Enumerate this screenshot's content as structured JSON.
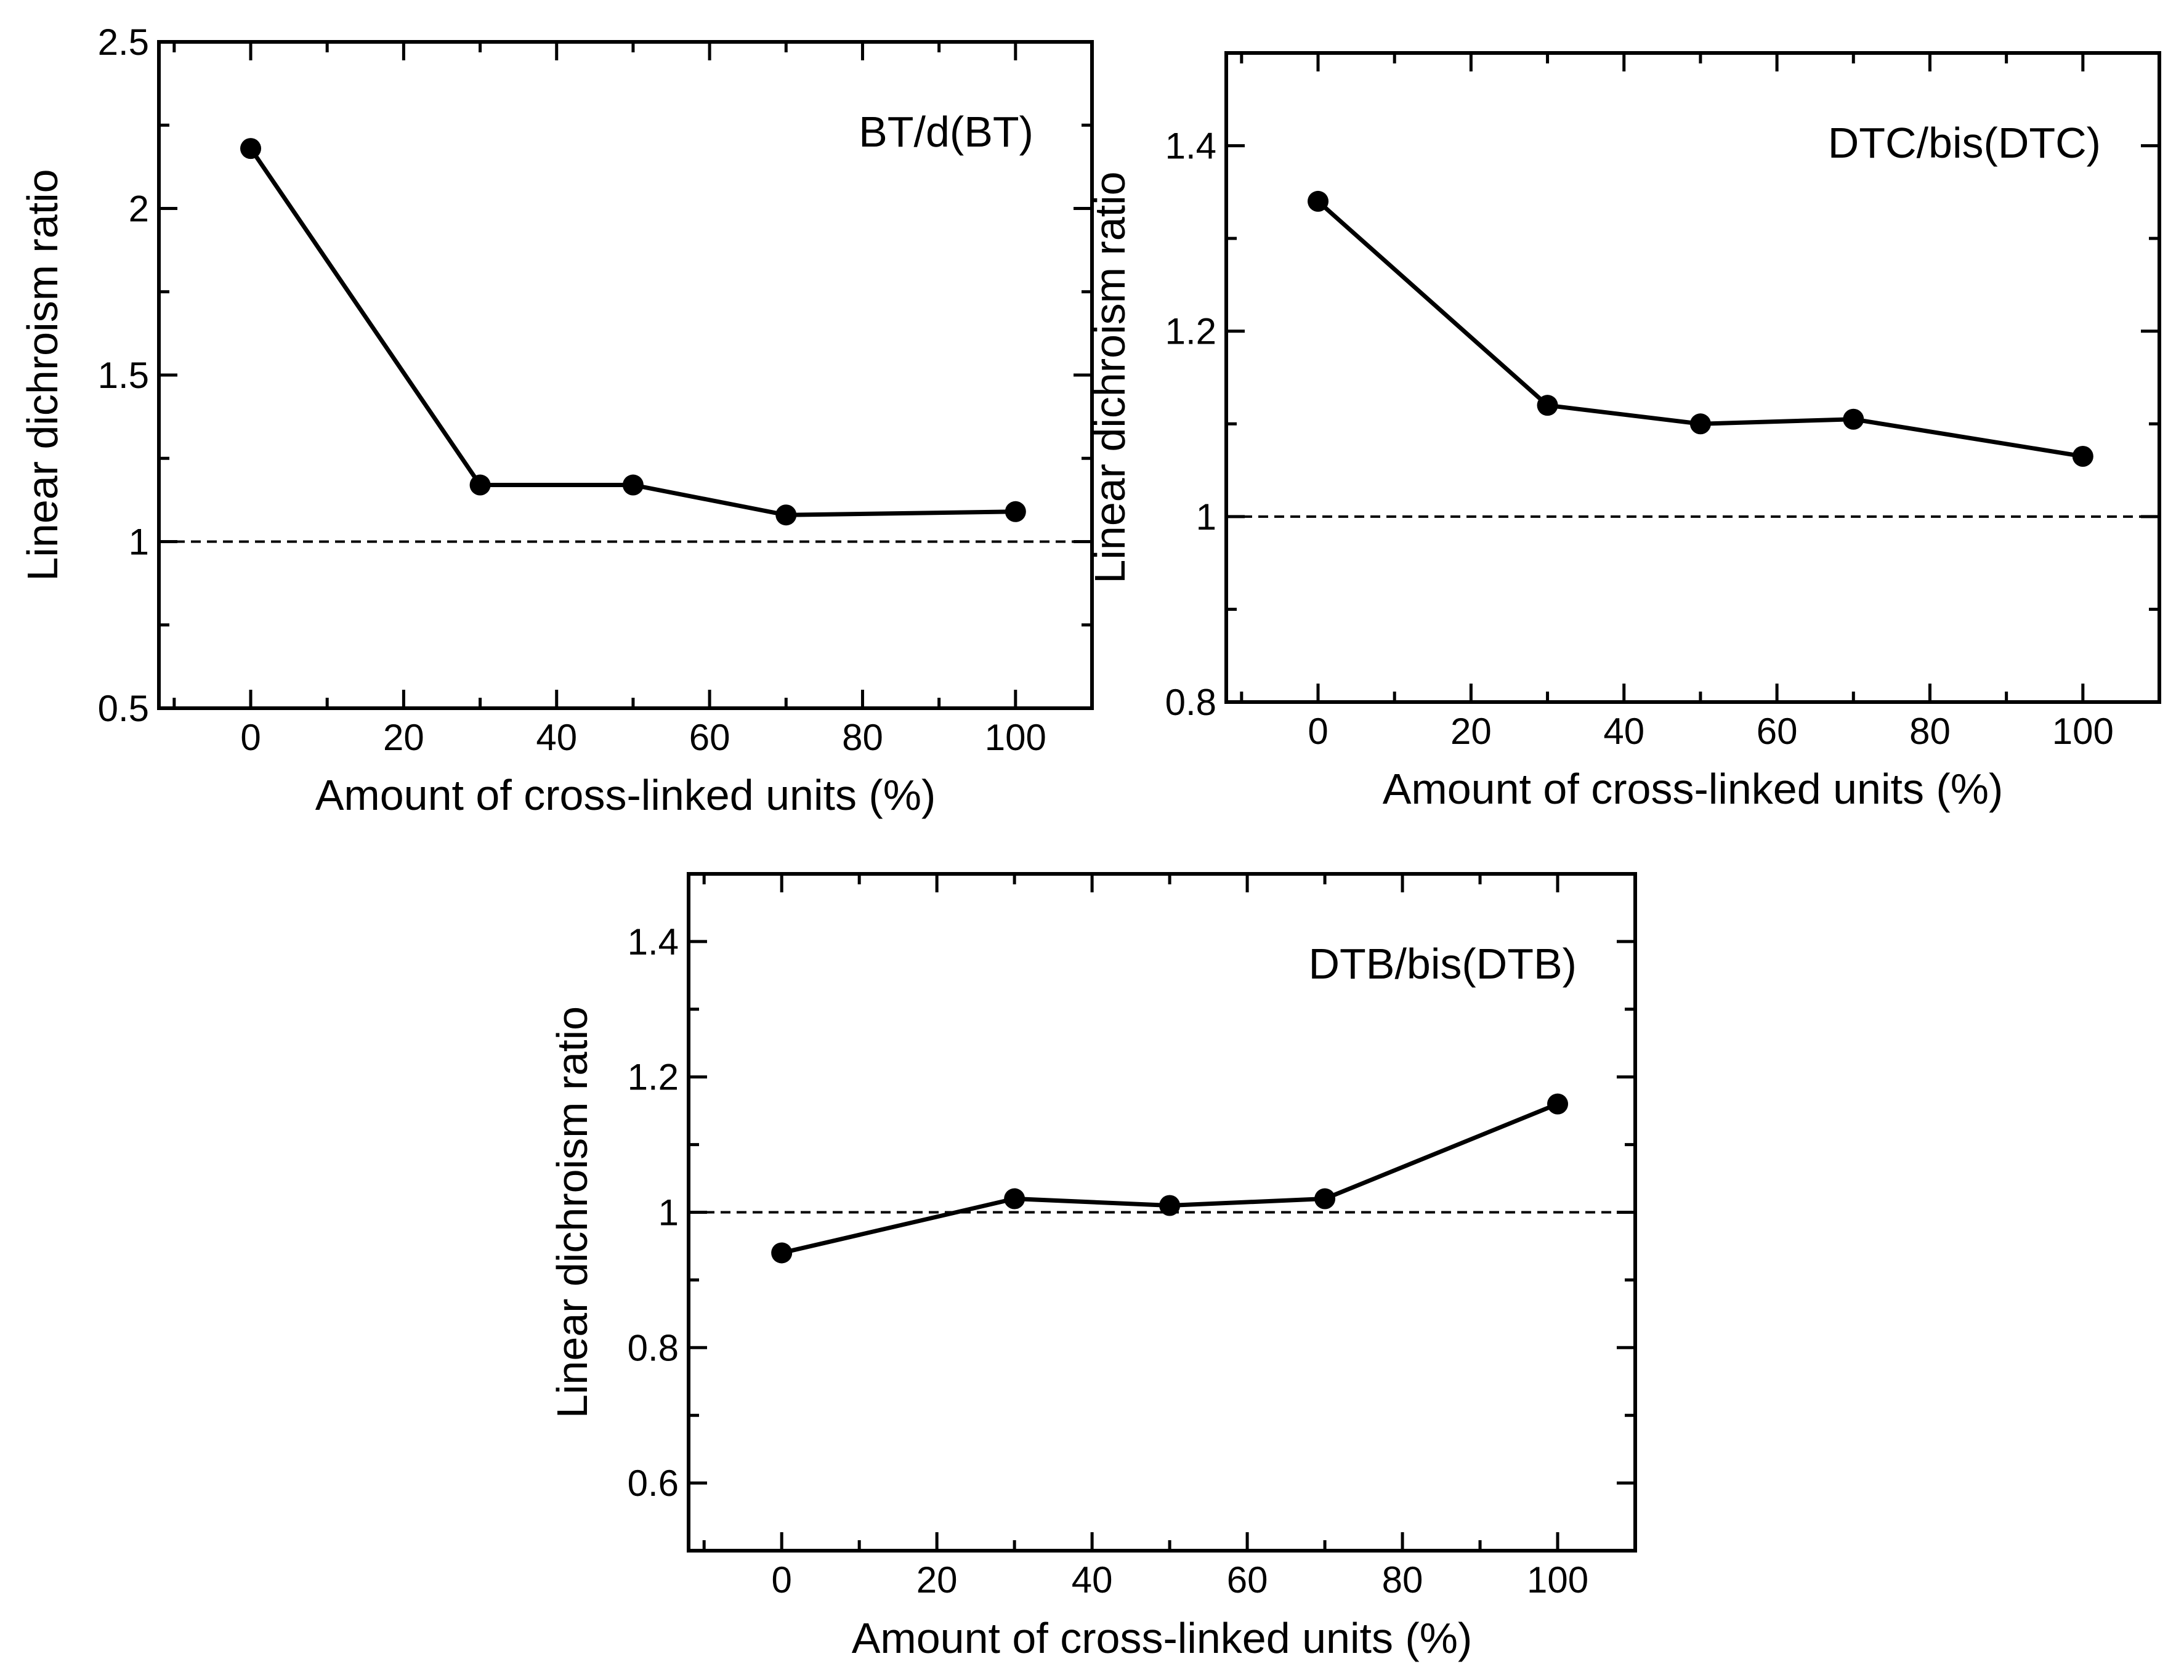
{
  "chart_data": [
    {
      "type": "line",
      "title": "",
      "panel_label": "BT/d(BT)",
      "legend_position": "top-right",
      "xlabel": "Amount of cross-linked units (%)",
      "ylabel": "Linear dichroism ratio",
      "xlim": [
        -12,
        110
      ],
      "ylim": [
        0.5,
        2.5
      ],
      "xticks": [
        0,
        20,
        40,
        60,
        80,
        100
      ],
      "xtick_labels": [
        "0",
        "20",
        "40",
        "60",
        "80",
        "100"
      ],
      "yticks": [
        0.5,
        1,
        1.5,
        2,
        2.5
      ],
      "ytick_labels": [
        "0.5",
        "1",
        "1.5",
        "2",
        "2.5"
      ],
      "x": [
        0,
        30,
        50,
        70,
        100
      ],
      "values": [
        2.18,
        1.17,
        1.17,
        1.08,
        1.09
      ],
      "reference_line": 1
    },
    {
      "type": "line",
      "title": "",
      "panel_label": "DTC/bis(DTC)",
      "legend_position": "top-right",
      "xlabel": "Amount of cross-linked units (%)",
      "ylabel": "Linear dichroism ratio",
      "xlim": [
        -12,
        110
      ],
      "ylim": [
        0.8,
        1.5
      ],
      "xticks": [
        0,
        20,
        40,
        60,
        80,
        100
      ],
      "xtick_labels": [
        "0",
        "20",
        "40",
        "60",
        "80",
        "100"
      ],
      "yticks": [
        0.8,
        1,
        1.2,
        1.4
      ],
      "ytick_labels": [
        "0.8",
        "1",
        "1.2",
        "1.4"
      ],
      "x": [
        0,
        30,
        50,
        70,
        100
      ],
      "values": [
        1.34,
        1.12,
        1.1,
        1.105,
        1.065
      ],
      "reference_line": 1
    },
    {
      "type": "line",
      "title": "",
      "panel_label": "DTB/bis(DTB)",
      "legend_position": "top-right",
      "xlabel": "Amount of cross-linked units (%)",
      "ylabel": "Linear dichroism ratio",
      "xlim": [
        -12,
        110
      ],
      "ylim": [
        0.5,
        1.5
      ],
      "xticks": [
        0,
        20,
        40,
        60,
        80,
        100
      ],
      "xtick_labels": [
        "0",
        "20",
        "40",
        "60",
        "80",
        "100"
      ],
      "yticks": [
        0.6,
        0.8,
        1,
        1.2,
        1.4
      ],
      "ytick_labels": [
        "0.6",
        "0.8",
        "1",
        "1.2",
        "1.4"
      ],
      "x": [
        0,
        30,
        50,
        70,
        100
      ],
      "values": [
        0.94,
        1.02,
        1.01,
        1.02,
        1.16
      ],
      "reference_line": 1
    }
  ]
}
